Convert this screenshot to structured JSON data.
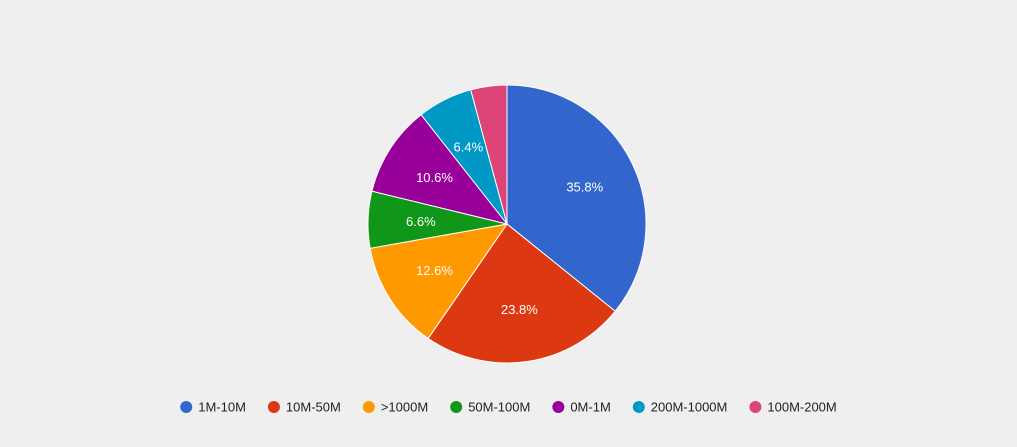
{
  "chart_data": {
    "type": "pie",
    "background": "#efefef",
    "start_angle_deg": 0,
    "direction": "clockwise",
    "legend_position": "bottom",
    "slices": [
      {
        "label": "1M-10M",
        "value": 35.8,
        "value_label": "35.8%",
        "color": "#3366cc",
        "show_label": true
      },
      {
        "label": "10M-50M",
        "value": 23.8,
        "value_label": "23.8%",
        "color": "#dc3912",
        "show_label": true
      },
      {
        "label": ">1000M",
        "value": 12.6,
        "value_label": "12.6%",
        "color": "#ff9900",
        "show_label": true
      },
      {
        "label": "50M-100M",
        "value": 6.6,
        "value_label": "6.6%",
        "color": "#109618",
        "show_label": true
      },
      {
        "label": "0M-1M",
        "value": 10.6,
        "value_label": "10.6%",
        "color": "#990099",
        "show_label": true
      },
      {
        "label": "200M-1000M",
        "value": 6.4,
        "value_label": "6.4%",
        "color": "#0099c6",
        "show_label": true
      },
      {
        "label": "100M-200M",
        "value": 4.2,
        "value_label": "",
        "color": "#dd4477",
        "show_label": false
      }
    ]
  }
}
